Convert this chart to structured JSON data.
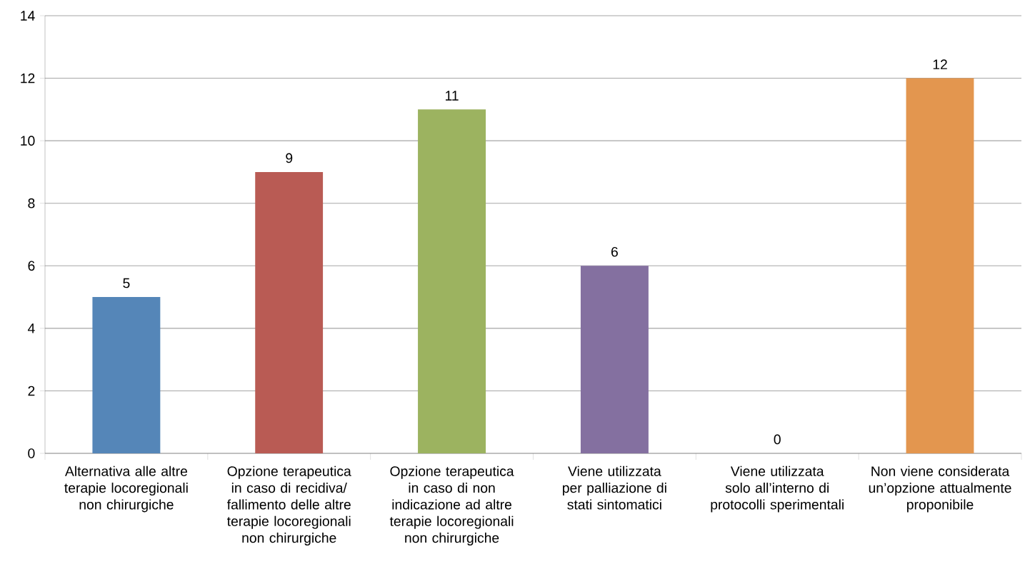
{
  "chart_data": {
    "type": "bar",
    "categories": [
      "Alternativa alle altre terapie locoregionali non chirurgiche",
      "Opzione terapeutica in caso di recidiva/ fallimento delle altre terapie locoregionali non chirurgiche",
      "Opzione terapeutica in caso di non indicazione ad altre terapie locoregionali non chirurgiche",
      "Viene utilizzata per palliazione di stati sintomatici",
      "Viene utilizzata solo all’interno di protocolli sperimentali",
      "Non viene considerata un’opzione attualmente proponibile"
    ],
    "values": [
      5,
      9,
      11,
      6,
      0,
      12
    ],
    "colors": [
      "#5586b8",
      "#b95b54",
      "#9cb360",
      "#8470a0",
      "#4bacc6",
      "#e3964f"
    ],
    "ylim": [
      0,
      14
    ],
    "yticks": [
      0,
      2,
      4,
      6,
      8,
      10,
      12,
      14
    ],
    "grid": "y",
    "data_labels": true
  }
}
